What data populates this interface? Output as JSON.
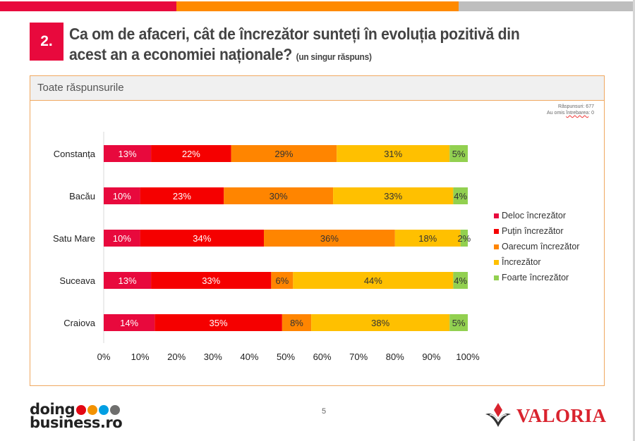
{
  "header": {
    "question_number": "2.",
    "question_text": "Ca om de afaceri, cât de încrezător sunteți în evoluția pozitivă din acest an a economiei naționale?",
    "question_note": "(un singur răspuns)",
    "topbar_colors": [
      "#e8093d",
      "#ff8a00",
      "#bebebe"
    ]
  },
  "panel": {
    "title": "Toate răspunsurile",
    "responses_label": "Răspunsuri: 677",
    "skipped_label_prefix": "Au omis ",
    "skipped_label_word": "întrebarea",
    "skipped_label_value": ": 0"
  },
  "chart_data": {
    "type": "bar",
    "orientation": "horizontal",
    "stacked": true,
    "title": "",
    "xlabel": "",
    "ylabel": "",
    "xlim": [
      0,
      100
    ],
    "x_ticks": [
      "0%",
      "10%",
      "20%",
      "30%",
      "40%",
      "50%",
      "60%",
      "70%",
      "80%",
      "90%",
      "100%"
    ],
    "categories": [
      "Constanța",
      "Bacău",
      "Satu Mare",
      "Suceava",
      "Craiova"
    ],
    "series": [
      {
        "name": "Deloc încrezător",
        "color": "#e8093d",
        "label_color": "#ffffff",
        "values": [
          13,
          10,
          10,
          13,
          14
        ]
      },
      {
        "name": "Puțin încrezător",
        "color": "#f50000",
        "label_color": "#ffffff",
        "values": [
          22,
          23,
          34,
          33,
          35
        ]
      },
      {
        "name": "Oarecum încrezător",
        "color": "#ff8500",
        "label_color": "#333333",
        "values": [
          29,
          30,
          36,
          6,
          8
        ]
      },
      {
        "name": "Încrezător",
        "color": "#ffc000",
        "label_color": "#333333",
        "values": [
          31,
          33,
          18,
          44,
          38
        ]
      },
      {
        "name": "Foarte încrezător",
        "color": "#92d050",
        "label_color": "#333333",
        "values": [
          5,
          4,
          2,
          4,
          5
        ]
      }
    ],
    "legend_position": "right",
    "grid": false
  },
  "footer": {
    "page_number": "5",
    "left_logo_line1": "doing",
    "left_logo_line2": "business.ro",
    "left_logo_dots": [
      "#e30613",
      "#f39200",
      "#009fe3",
      "#6f6f6e"
    ],
    "right_logo_text": "VALORIA"
  }
}
